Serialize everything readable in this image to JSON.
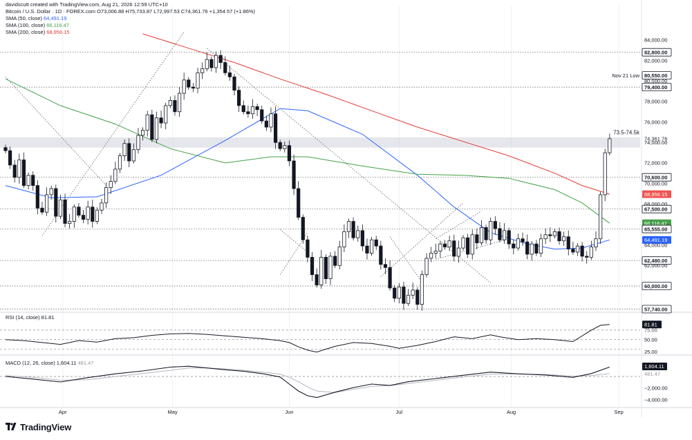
{
  "header": {
    "creator_line": "davidscutt created with TradingView.com, Aug 21, 2026 12:59 UTC+10",
    "symbol_line": "Bitcoin / U.S. Dollar · 1D · FOREX.com  O73,006.88  H75,733.87  L72,997.53  C74,361.76  +1,354.57 (+1.86%)",
    "sma50": {
      "label": "SMA (50, close)",
      "value": "64,491.19",
      "color": "#2962ff"
    },
    "sma100": {
      "label": "SMA (100, close)",
      "value": "66,116.47",
      "color": "#43a047"
    },
    "sma200": {
      "label": "SMA (200, close)",
      "value": "68,956.15",
      "color": "#e53935"
    }
  },
  "brand": "TradingView",
  "annotations": {
    "nov21": "Nov 21 Low",
    "zone": "73.5-74.5k"
  },
  "chart_data": [
    {
      "type": "candlestick",
      "title": "Bitcoin / U.S. Dollar · 1D · FOREX.com",
      "x_ticks": [
        "Apr",
        "May",
        "Jun",
        "Jul",
        "Aug",
        "Sep"
      ],
      "y_ticks": [
        60000,
        62000,
        64000,
        66000,
        68000,
        70000,
        72000,
        74000,
        76000,
        78000,
        80000,
        82000,
        84000
      ],
      "ylim": [
        57740,
        84700
      ],
      "horizontal_levels": [
        57740,
        60000,
        62480,
        65555,
        67500,
        70600,
        79400,
        82800
      ],
      "shaded_zone": [
        73500,
        74500
      ],
      "price_labels": [
        {
          "text": "84,000.00",
          "value": 84000,
          "style": "tick"
        },
        {
          "text": "82,800.00",
          "value": 82800,
          "style": "boxed"
        },
        {
          "text": "82,000.00",
          "value": 82000,
          "style": "tick"
        },
        {
          "text": "80,550.00",
          "value": 80550,
          "style": "boxed"
        },
        {
          "text": "80,000.00",
          "value": 80000,
          "style": "tick"
        },
        {
          "text": "79,400.00",
          "value": 79400,
          "style": "boxed"
        },
        {
          "text": "78,000.00",
          "value": 78000,
          "style": "tick"
        },
        {
          "text": "76,000.00",
          "value": 76000,
          "style": "tick"
        },
        {
          "text": "74,361.76",
          "value": 74361.76,
          "style": "tick"
        },
        {
          "text": "74,000.00",
          "value": 74000,
          "style": "tick"
        },
        {
          "text": "72,000.00",
          "value": 72000,
          "style": "tick"
        },
        {
          "text": "70,600.00",
          "value": 70600,
          "style": "boxed"
        },
        {
          "text": "70,000.00",
          "value": 70000,
          "style": "tick"
        },
        {
          "text": "68,956.15",
          "value": 68956.15,
          "style": "red"
        },
        {
          "text": "68,000.00",
          "value": 68000,
          "style": "tick"
        },
        {
          "text": "67,500.00",
          "value": 67500,
          "style": "boxed"
        },
        {
          "text": "66,116.47",
          "value": 66116.47,
          "style": "green"
        },
        {
          "text": "65,555.00",
          "value": 65555,
          "style": "boxed"
        },
        {
          "text": "64,491.19",
          "value": 64491.19,
          "style": "blue"
        },
        {
          "text": "64,000.00",
          "value": 64000,
          "style": "tick"
        },
        {
          "text": "62,480.00",
          "value": 62480,
          "style": "boxed"
        },
        {
          "text": "62,000.00",
          "value": 62000,
          "style": "tick"
        },
        {
          "text": "60,000.00",
          "value": 60000,
          "style": "boxed"
        },
        {
          "text": "57,740.00",
          "value": 57740,
          "style": "boxed"
        }
      ],
      "close_series": [
        73200,
        71800,
        70600,
        72300,
        69800,
        70800,
        69800,
        67600,
        67200,
        68900,
        69500,
        66800,
        68400,
        66100,
        66300,
        67700,
        66900,
        66500,
        67700,
        66300,
        67400,
        68100,
        69600,
        70200,
        71400,
        72700,
        73900,
        72200,
        73300,
        74700,
        75200,
        76700,
        74300,
        76400,
        75900,
        77600,
        78100,
        77000,
        78800,
        80100,
        79400,
        79300,
        80800,
        81200,
        82100,
        81300,
        82500,
        81800,
        80800,
        80400,
        79100,
        77600,
        77000,
        76800,
        77500,
        77200,
        76100,
        75500,
        76800,
        74000,
        73400,
        73700,
        72200,
        69500,
        66700,
        64500,
        62800,
        61100,
        60100,
        62800,
        60700,
        62900,
        62000,
        63800,
        65300,
        66300,
        64700,
        65400,
        63900,
        63200,
        64500,
        63900,
        62100,
        61800,
        59800,
        58800,
        59900,
        58300,
        59100,
        59600,
        58200,
        61100,
        62700,
        63200,
        63400,
        64100,
        63800,
        64400,
        62900,
        63700,
        64700,
        63100,
        65000,
        64200,
        65700,
        64500,
        66300,
        65600,
        64500,
        65400,
        64100,
        63700,
        64600,
        64300,
        63100,
        64100,
        63200,
        64600,
        65000,
        64900,
        65300,
        64400,
        64800,
        63600,
        63300,
        63900,
        62900,
        62800,
        63800,
        64600,
        68900,
        73000,
        74361.76
      ],
      "moving_averages": [
        {
          "name": "SMA (50, close)",
          "color": "#2962ff",
          "last": 64491.19,
          "points": [
            [
              0,
              69800
            ],
            [
              10,
              68600
            ],
            [
              20,
              68700
            ],
            [
              34,
              70800
            ],
            [
              48,
              74200
            ],
            [
              60,
              77300
            ],
            [
              66,
              77100
            ],
            [
              78,
              74800
            ],
            [
              90,
              70800
            ],
            [
              98,
              67700
            ],
            [
              106,
              65200
            ],
            [
              114,
              64100
            ],
            [
              120,
              63600
            ],
            [
              126,
              63700
            ],
            [
              132,
              64491.19
            ]
          ]
        },
        {
          "name": "SMA (100, close)",
          "color": "#43a047",
          "last": 66116.47,
          "points": [
            [
              0,
              80200
            ],
            [
              12,
              77600
            ],
            [
              24,
              75800
            ],
            [
              36,
              73400
            ],
            [
              48,
              72000
            ],
            [
              58,
              72600
            ],
            [
              66,
              72600
            ],
            [
              78,
              71700
            ],
            [
              90,
              70900
            ],
            [
              100,
              70800
            ],
            [
              110,
              70500
            ],
            [
              120,
              69400
            ],
            [
              126,
              68100
            ],
            [
              132,
              66116.47
            ]
          ]
        },
        {
          "name": "SMA (200, close)",
          "color": "#e53935",
          "last": 68956.15,
          "points": [
            [
              30,
              84600
            ],
            [
              40,
              83200
            ],
            [
              50,
              81800
            ],
            [
              60,
              80200
            ],
            [
              70,
              78700
            ],
            [
              80,
              77100
            ],
            [
              90,
              75500
            ],
            [
              100,
              74100
            ],
            [
              110,
              72700
            ],
            [
              120,
              71000
            ],
            [
              126,
              69800
            ],
            [
              132,
              68956.15
            ]
          ]
        }
      ]
    },
    {
      "type": "line",
      "title": "RSI (14, close)",
      "label": "RSI (14, close)",
      "last_value": "81.81",
      "y_ticks": [
        "50.00",
        "25.00"
      ],
      "ylim": [
        10,
        95
      ],
      "levels": [
        70,
        50,
        30
      ],
      "top_tick_partial": "75.00",
      "points": [
        [
          0,
          50
        ],
        [
          4,
          48
        ],
        [
          8,
          44
        ],
        [
          12,
          40
        ],
        [
          16,
          48
        ],
        [
          20,
          45
        ],
        [
          24,
          52
        ],
        [
          28,
          54
        ],
        [
          32,
          59
        ],
        [
          36,
          62
        ],
        [
          40,
          63
        ],
        [
          44,
          61
        ],
        [
          48,
          58
        ],
        [
          52,
          55
        ],
        [
          56,
          52
        ],
        [
          60,
          48
        ],
        [
          62,
          44
        ],
        [
          64,
          35
        ],
        [
          66,
          28
        ],
        [
          68,
          24
        ],
        [
          70,
          30
        ],
        [
          72,
          36
        ],
        [
          76,
          44
        ],
        [
          80,
          42
        ],
        [
          84,
          36
        ],
        [
          86,
          32
        ],
        [
          90,
          38
        ],
        [
          94,
          46
        ],
        [
          98,
          56
        ],
        [
          102,
          52
        ],
        [
          106,
          60
        ],
        [
          108,
          56
        ],
        [
          112,
          50
        ],
        [
          116,
          52
        ],
        [
          120,
          50
        ],
        [
          124,
          46
        ],
        [
          128,
          70
        ],
        [
          130,
          80
        ],
        [
          132,
          81.81
        ]
      ]
    },
    {
      "type": "line",
      "title": "MACD (12, 26, close)",
      "label": "MACD (12, 26, close)",
      "macd_value": "1,604.11",
      "signal_value": "481.47",
      "y_ticks": [
        "−2,000.00",
        "−4,000.00"
      ],
      "ylim": [
        -5200,
        2600
      ],
      "zero_level": 0,
      "macd": [
        [
          0,
          0
        ],
        [
          6,
          -450
        ],
        [
          12,
          -950
        ],
        [
          18,
          -200
        ],
        [
          24,
          450
        ],
        [
          30,
          950
        ],
        [
          36,
          1600
        ],
        [
          40,
          1750
        ],
        [
          44,
          1450
        ],
        [
          48,
          1150
        ],
        [
          52,
          900
        ],
        [
          56,
          500
        ],
        [
          60,
          -100
        ],
        [
          62,
          -1300
        ],
        [
          64,
          -2500
        ],
        [
          66,
          -3300
        ],
        [
          68,
          -3600
        ],
        [
          72,
          -2700
        ],
        [
          76,
          -1900
        ],
        [
          80,
          -1300
        ],
        [
          84,
          -1550
        ],
        [
          88,
          -900
        ],
        [
          94,
          -350
        ],
        [
          100,
          200
        ],
        [
          106,
          750
        ],
        [
          112,
          450
        ],
        [
          118,
          250
        ],
        [
          124,
          -150
        ],
        [
          128,
          500
        ],
        [
          132,
          1604.11
        ]
      ],
      "signal": [
        [
          0,
          150
        ],
        [
          6,
          -150
        ],
        [
          12,
          -650
        ],
        [
          18,
          -550
        ],
        [
          24,
          0
        ],
        [
          30,
          500
        ],
        [
          36,
          1050
        ],
        [
          40,
          1450
        ],
        [
          44,
          1450
        ],
        [
          48,
          1300
        ],
        [
          52,
          1050
        ],
        [
          56,
          750
        ],
        [
          60,
          400
        ],
        [
          62,
          -150
        ],
        [
          64,
          -900
        ],
        [
          66,
          -1800
        ],
        [
          68,
          -2500
        ],
        [
          72,
          -2750
        ],
        [
          76,
          -2200
        ],
        [
          80,
          -1700
        ],
        [
          84,
          -1550
        ],
        [
          88,
          -1200
        ],
        [
          94,
          -650
        ],
        [
          100,
          -100
        ],
        [
          106,
          400
        ],
        [
          112,
          450
        ],
        [
          118,
          350
        ],
        [
          124,
          50
        ],
        [
          128,
          150
        ],
        [
          132,
          481.47
        ]
      ]
    }
  ],
  "trendlines": [
    {
      "from": [
        0,
        80400
      ],
      "to": [
        22,
        69800
      ]
    },
    {
      "from": [
        8,
        64900
      ],
      "to": [
        39,
        84800
      ]
    },
    {
      "from": [
        44,
        83200
      ],
      "to": [
        106,
        60300
      ]
    },
    {
      "from": [
        60,
        61100
      ],
      "to": [
        66,
        65200
      ]
    },
    {
      "from": [
        60,
        65500
      ],
      "to": [
        66,
        63300
      ]
    },
    {
      "from": [
        82,
        60900
      ],
      "to": [
        100,
        68100
      ]
    },
    {
      "from": [
        84,
        64800
      ],
      "to": [
        91,
        60400
      ]
    },
    {
      "from": [
        94,
        64600
      ],
      "to": [
        104,
        67300
      ]
    },
    {
      "from": [
        94,
        62600
      ],
      "to": [
        110,
        64600
      ]
    }
  ],
  "date_axis": {
    "labels": [
      "Apr",
      "May",
      "Jun",
      "Jul",
      "Aug",
      "Sep"
    ],
    "label_positions": [
      12.5,
      36.5,
      62,
      86,
      110.5,
      134
    ]
  }
}
